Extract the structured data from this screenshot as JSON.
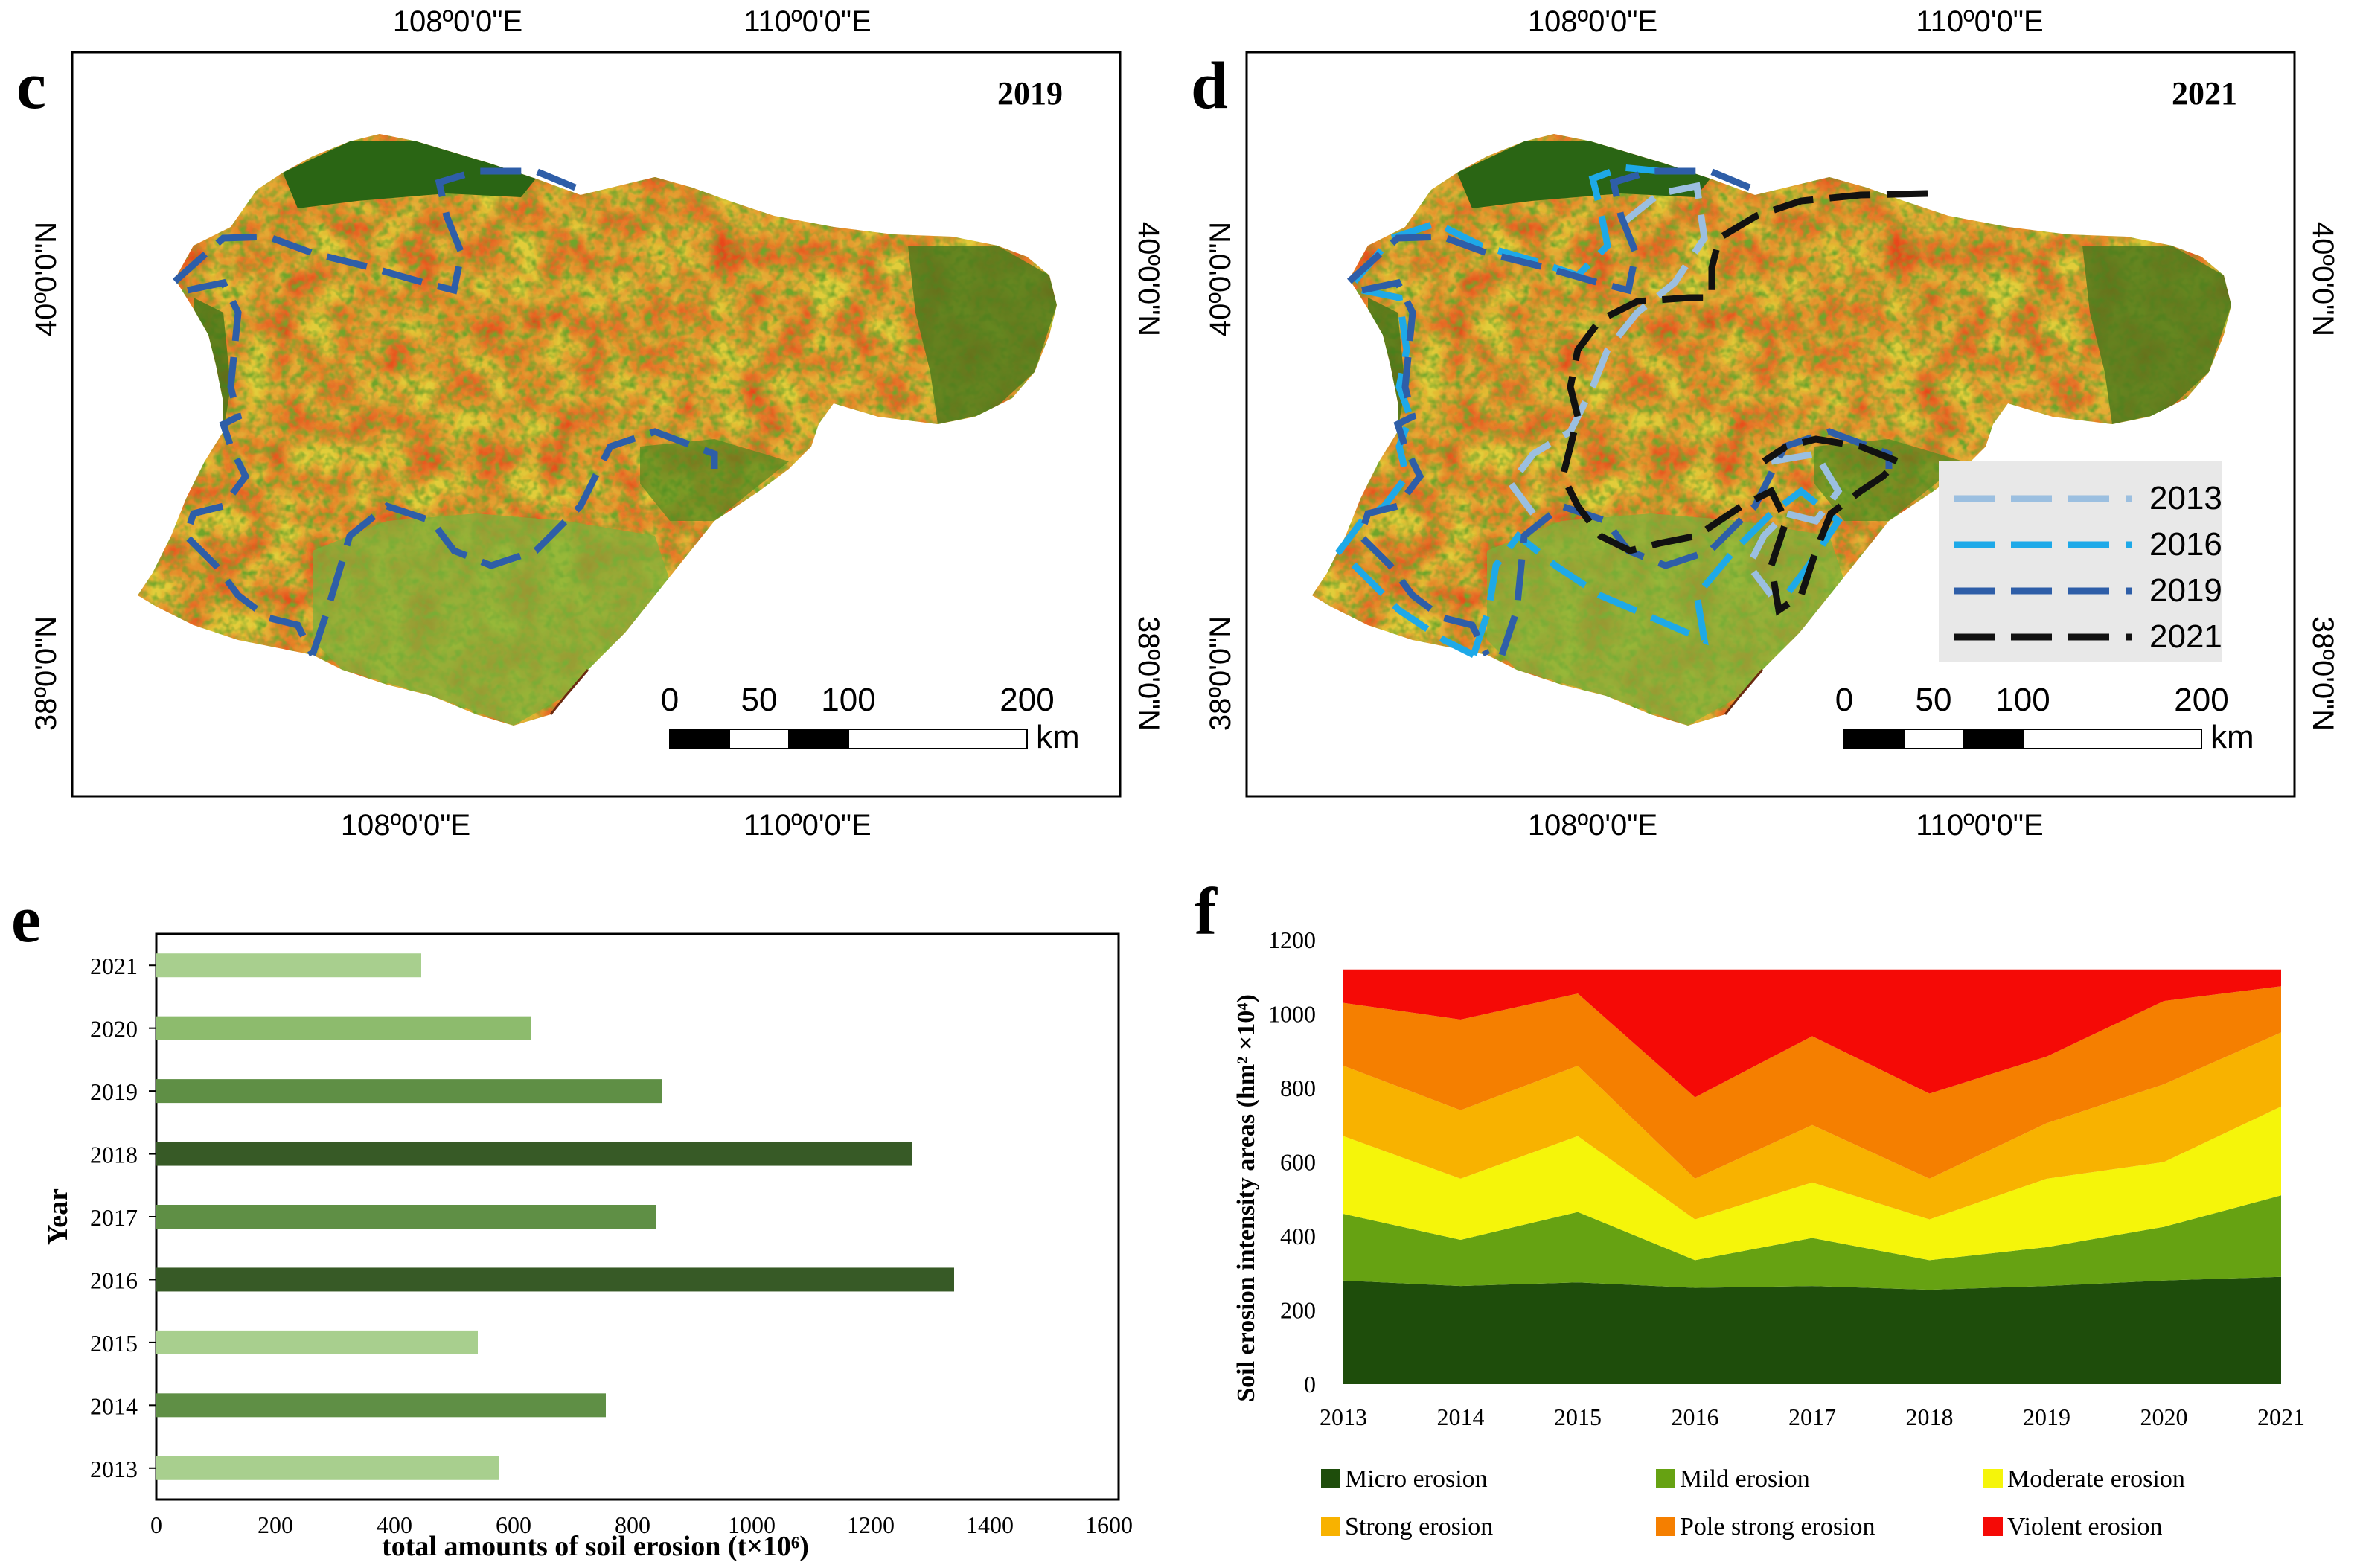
{
  "colors": {
    "erosion_micro": "#1e4d0b",
    "erosion_mild": "#66a212",
    "erosion_moderate": "#f5f50a",
    "erosion_strong": "#f8b200",
    "erosion_pole": "#f57f00",
    "erosion_violent": "#f50a06",
    "map_dark_green": "#2e6a14",
    "map_yellow": "#e6d23a",
    "map_red": "#e8401a",
    "line_2013": "#9bbfe0",
    "line_2016": "#1ea9e8",
    "line_2019": "#2e5ea8",
    "line_2021": "#111111"
  },
  "panel_c": {
    "letter": "c",
    "year": "2019",
    "top_ticks": [
      "108º0'0\"E",
      "110º0'0\"E"
    ],
    "bottom_ticks": [
      "108º0'0\"E",
      "110º0'0\"E"
    ],
    "left_ticks": [
      "40º0'0\"N",
      "38º0'0\"N"
    ],
    "right_ticks": [
      "40º0'0\"N",
      "38º0'0\"N"
    ],
    "scale_labels": [
      "0",
      "50",
      "100",
      "200"
    ],
    "scale_unit": "km"
  },
  "panel_d": {
    "letter": "d",
    "year": "2021",
    "top_ticks": [
      "108º0'0\"E",
      "110º0'0\"E"
    ],
    "bottom_ticks": [
      "108º0'0\"E",
      "110º0'0\"E"
    ],
    "left_ticks": [
      "40º0'0\"N",
      "38º0'0\"N"
    ],
    "right_ticks": [
      "40º0'0\"N",
      "38º0'0\"N"
    ],
    "scale_labels": [
      "0",
      "50",
      "100",
      "200"
    ],
    "scale_unit": "km",
    "legend": [
      "2013",
      "2016",
      "2019",
      "2021"
    ]
  },
  "chart_data": [
    {
      "id": "e",
      "letter": "e",
      "type": "bar",
      "orientation": "horizontal",
      "categories": [
        "2013",
        "2014",
        "2015",
        "2016",
        "2017",
        "2018",
        "2019",
        "2020",
        "2021"
      ],
      "values": [
        575,
        755,
        540,
        1340,
        840,
        1270,
        850,
        630,
        445
      ],
      "bar_colors": [
        "#a8cf8e",
        "#5f8f45",
        "#a8cf8e",
        "#375a26",
        "#5f8f45",
        "#375a26",
        "#5f8f45",
        "#8dbb6d",
        "#a8cf8e"
      ],
      "xlabel": "total amounts of soil erosion (t×10⁶)",
      "ylabel": "Year",
      "xlim": [
        0,
        1600
      ],
      "xticks": [
        "0",
        "200",
        "400",
        "600",
        "800",
        "1000",
        "1200",
        "1400",
        "1600"
      ],
      "grid": false
    },
    {
      "id": "f",
      "letter": "f",
      "type": "area",
      "stacked": true,
      "x": [
        "2013",
        "2014",
        "2015",
        "2016",
        "2017",
        "2018",
        "2019",
        "2020",
        "2021"
      ],
      "series": [
        {
          "name": "Micro erosion",
          "values": [
            280,
            265,
            275,
            260,
            265,
            255,
            265,
            280,
            290
          ]
        },
        {
          "name": "Mild erosion",
          "values": [
            180,
            125,
            190,
            75,
            130,
            80,
            105,
            145,
            220
          ]
        },
        {
          "name": "Moderate erosion",
          "values": [
            210,
            165,
            205,
            110,
            150,
            110,
            185,
            175,
            240
          ]
        },
        {
          "name": "Strong erosion",
          "values": [
            190,
            185,
            190,
            110,
            155,
            110,
            150,
            210,
            200
          ]
        },
        {
          "name": "Pole strong erosion",
          "values": [
            170,
            245,
            195,
            220,
            240,
            230,
            180,
            225,
            125
          ]
        },
        {
          "name": "Violent erosion",
          "values": [
            90,
            135,
            65,
            345,
            180,
            335,
            235,
            85,
            45
          ]
        }
      ],
      "ylabel": "Soil erosion intensity areas (hm² ×10⁴)",
      "ylim": [
        0,
        1200
      ],
      "yticks": [
        "0",
        "200",
        "400",
        "600",
        "800",
        "1000",
        "1200"
      ],
      "legend_position": "bottom",
      "grid": false
    }
  ]
}
